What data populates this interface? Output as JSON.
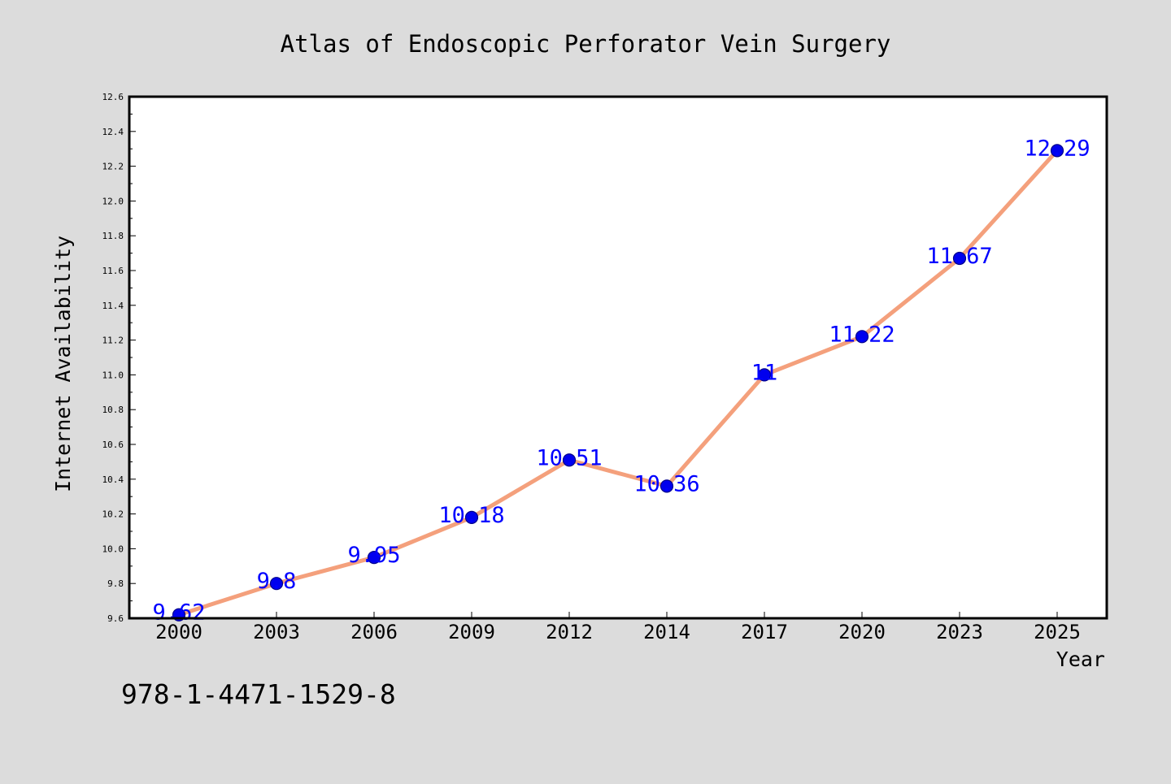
{
  "chart_data": {
    "type": "line",
    "title": "Atlas of Endoscopic Perforator Vein Surgery",
    "xlabel": "Year",
    "ylabel": "Internet Availability",
    "categories": [
      "2000",
      "2003",
      "2006",
      "2009",
      "2012",
      "2014",
      "2017",
      "2020",
      "2023",
      "2025"
    ],
    "series": [
      {
        "values": [
          9.62,
          9.8,
          9.95,
          10.18,
          10.51,
          10.36,
          11,
          11.22,
          11.67,
          12.29
        ],
        "data_labels": [
          "9.62",
          "9.8",
          "9.95",
          "10.18",
          "10.51",
          "10.36",
          "11",
          "11.22",
          "11.67",
          "12.29"
        ]
      }
    ],
    "ylim": [
      9.6,
      12.6
    ],
    "yticks": [
      "9.6",
      "9.8",
      "10.0",
      "10.2",
      "10.4",
      "10.6",
      "10.8",
      "11.0",
      "11.2",
      "11.4",
      "11.6",
      "11.8",
      "12.0",
      "12.2",
      "12.4",
      "12.6"
    ],
    "grid": false,
    "legend": false,
    "colors": {
      "background": "#dcdcdc",
      "plot_background": "#ffffff",
      "line": "#f4a07c",
      "marker": "#0000ee",
      "data_label": "#0000ff",
      "text": "#000000"
    }
  },
  "footer": {
    "isbn": "978-1-4471-1529-8"
  }
}
